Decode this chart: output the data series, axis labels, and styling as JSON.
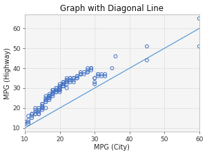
{
  "title": "Graph with Diagonal Line",
  "xlabel": "MPG (City)",
  "ylabel": "MPG (Highway)",
  "xlim": [
    10,
    60
  ],
  "ylim": [
    8,
    67
  ],
  "xticks": [
    10,
    20,
    30,
    40,
    50,
    60
  ],
  "yticks": [
    10,
    20,
    30,
    40,
    50,
    60
  ],
  "scatter_color": "#4472C4",
  "line_color": "#5B9BD5",
  "plot_bg_color": "#F5F5F5",
  "fig_bg_color": "#FFFFFF",
  "grid_color": "#DDDDDD",
  "city_mpg": [
    10,
    10,
    11,
    11,
    11,
    11,
    12,
    12,
    12,
    12,
    13,
    13,
    13,
    13,
    13,
    13,
    14,
    14,
    14,
    14,
    14,
    14,
    15,
    15,
    15,
    15,
    15,
    15,
    15,
    15,
    16,
    16,
    16,
    16,
    16,
    16,
    16,
    16,
    17,
    17,
    17,
    17,
    17,
    17,
    17,
    17,
    17,
    17,
    18,
    18,
    18,
    18,
    18,
    18,
    18,
    18,
    19,
    19,
    19,
    19,
    19,
    19,
    19,
    19,
    20,
    20,
    20,
    20,
    20,
    20,
    20,
    20,
    20,
    20,
    21,
    21,
    21,
    21,
    21,
    21,
    21,
    21,
    22,
    22,
    22,
    22,
    22,
    22,
    22,
    23,
    23,
    23,
    23,
    23,
    24,
    24,
    24,
    24,
    24,
    25,
    25,
    25,
    25,
    26,
    26,
    26,
    26,
    26,
    27,
    27,
    28,
    28,
    28,
    28,
    29,
    29,
    29,
    29,
    30,
    30,
    30,
    30,
    31,
    31,
    31,
    32,
    32,
    33,
    33,
    35,
    36,
    45,
    45,
    60,
    60
  ],
  "hwy_mpg": [
    12,
    13,
    12,
    13,
    14,
    16,
    16,
    15,
    17,
    17,
    17,
    19,
    17,
    20,
    18,
    17,
    17,
    19,
    20,
    18,
    19,
    17,
    20,
    19,
    20,
    20,
    22,
    21,
    22,
    21,
    20,
    24,
    23,
    25,
    24,
    26,
    24,
    23,
    25,
    25,
    26,
    25,
    26,
    24,
    25,
    26,
    27,
    26,
    26,
    29,
    27,
    28,
    29,
    29,
    27,
    28,
    29,
    28,
    30,
    30,
    29,
    28,
    29,
    29,
    28,
    29,
    31,
    32,
    30,
    30,
    31,
    29,
    29,
    30,
    31,
    33,
    31,
    32,
    32,
    33,
    32,
    31,
    33,
    30,
    34,
    32,
    33,
    35,
    34,
    35,
    33,
    35,
    34,
    34,
    35,
    33,
    35,
    34,
    35,
    35,
    36,
    36,
    35,
    37,
    37,
    37,
    37,
    38,
    37,
    38,
    40,
    38,
    38,
    39,
    39,
    40,
    40,
    40,
    32,
    33,
    35,
    35,
    36,
    37,
    37,
    36,
    37,
    36,
    37,
    40,
    46,
    51,
    44,
    51,
    65
  ],
  "marker_size": 12,
  "marker_linewidth": 0.7,
  "title_fontsize": 8.5,
  "label_fontsize": 7,
  "tick_fontsize": 6.5,
  "line_x": [
    10,
    60
  ],
  "line_y": [
    10,
    60
  ]
}
